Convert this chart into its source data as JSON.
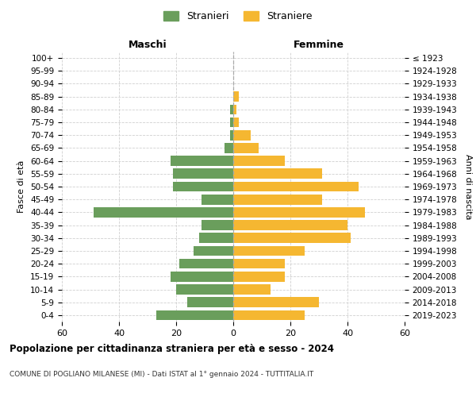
{
  "age_groups": [
    "0-4",
    "5-9",
    "10-14",
    "15-19",
    "20-24",
    "25-29",
    "30-34",
    "35-39",
    "40-44",
    "45-49",
    "50-54",
    "55-59",
    "60-64",
    "65-69",
    "70-74",
    "75-79",
    "80-84",
    "85-89",
    "90-94",
    "95-99",
    "100+"
  ],
  "birth_years": [
    "2019-2023",
    "2014-2018",
    "2009-2013",
    "2004-2008",
    "1999-2003",
    "1994-1998",
    "1989-1993",
    "1984-1988",
    "1979-1983",
    "1974-1978",
    "1969-1973",
    "1964-1968",
    "1959-1963",
    "1954-1958",
    "1949-1953",
    "1944-1948",
    "1939-1943",
    "1934-1938",
    "1929-1933",
    "1924-1928",
    "≤ 1923"
  ],
  "males": [
    27,
    16,
    20,
    22,
    19,
    14,
    12,
    11,
    49,
    11,
    21,
    21,
    22,
    3,
    1,
    1,
    1,
    0,
    0,
    0,
    0
  ],
  "females": [
    25,
    30,
    13,
    18,
    18,
    25,
    41,
    40,
    46,
    31,
    44,
    31,
    18,
    9,
    6,
    2,
    1,
    2,
    0,
    0,
    0
  ],
  "male_color": "#6a9e5c",
  "female_color": "#f5b731",
  "title": "Popolazione per cittadinanza straniera per età e sesso - 2024",
  "subtitle": "COMUNE DI POGLIANO MILANESE (MI) - Dati ISTAT al 1° gennaio 2024 - TUTTITALIA.IT",
  "xlabel_left": "Maschi",
  "xlabel_right": "Femmine",
  "ylabel_left": "Fasce di età",
  "ylabel_right": "Anni di nascita",
  "legend_male": "Stranieri",
  "legend_female": "Straniere",
  "xlim": 60,
  "background_color": "#ffffff",
  "grid_color": "#d0d0d0"
}
